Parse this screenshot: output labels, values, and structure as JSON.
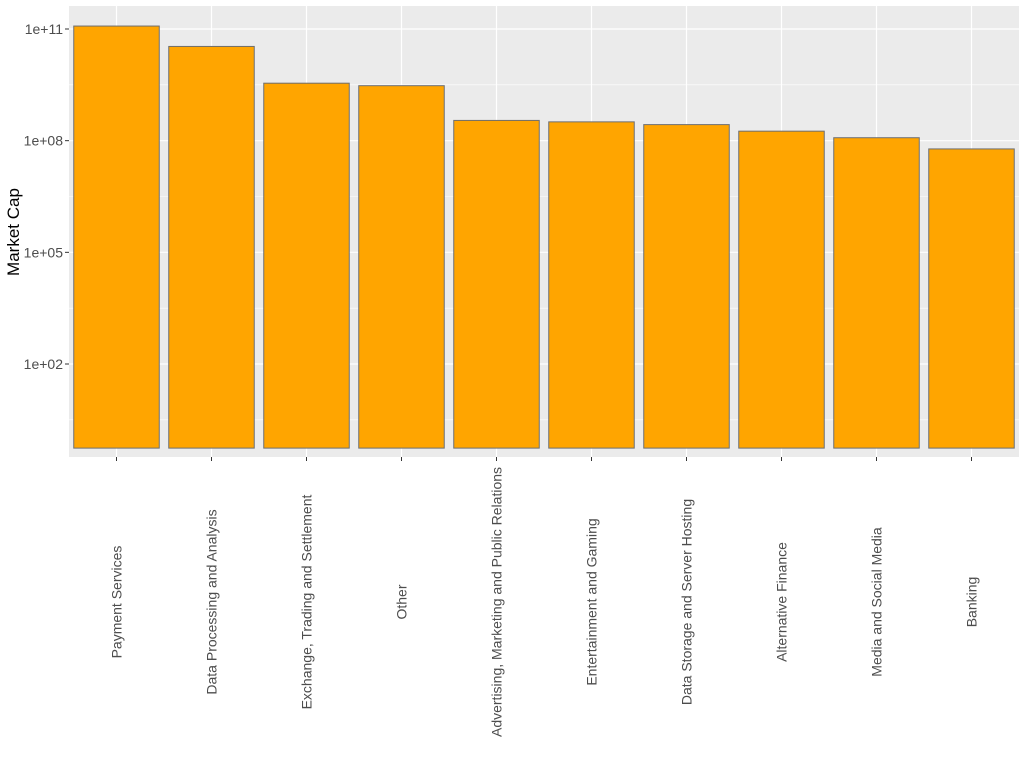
{
  "chart_data": {
    "type": "bar",
    "title": "",
    "xlabel": "",
    "ylabel": "Market Cap",
    "y_scale": "log10",
    "ylim": [
      0.55,
      500000000000
    ],
    "grid": true,
    "legend": "none",
    "colors": {
      "bar_fill": "#ffa500",
      "bar_stroke": "#6e6e6e",
      "panel_bg": "#ebebeb",
      "grid": "#ffffff",
      "tick_text": "#4d4d4d",
      "axis_title_text": "#000000"
    },
    "y_ticks": [
      {
        "value": 100,
        "label": "1e+02"
      },
      {
        "value": 100000,
        "label": "1e+05"
      },
      {
        "value": 100000000,
        "label": "1e+08"
      },
      {
        "value": 100000000000,
        "label": "1e+11"
      }
    ],
    "categories": [
      "Payment Services",
      "Data Processing and Analysis",
      "Exchange, Trading and Settlement",
      "Other",
      "Advertising, Marketing and Public Relations",
      "Entertainment and Gaming",
      "Data Storage and Server Hosting",
      "Alternative Finance",
      "Media and Social Media",
      "Banking"
    ],
    "values": [
      120000000000,
      34000000000,
      3500000000,
      3000000000,
      350000000,
      320000000,
      270000000,
      180000000,
      120000000,
      60000000
    ]
  }
}
